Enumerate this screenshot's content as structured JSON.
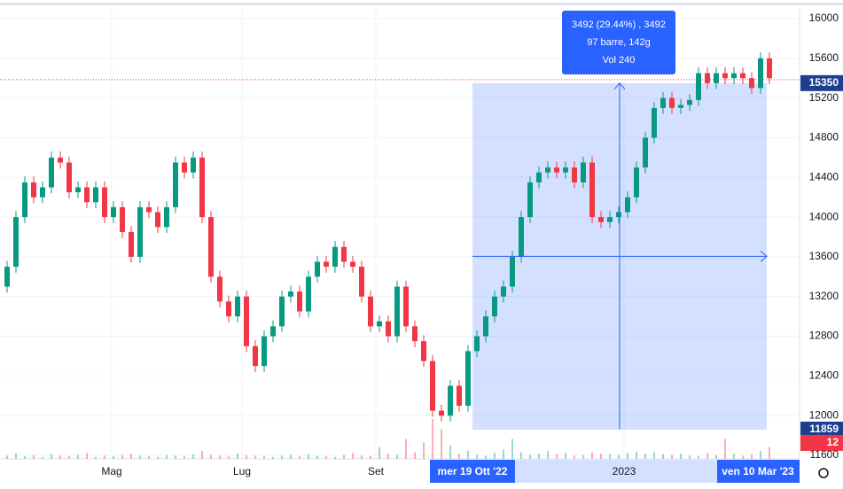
{
  "chart_data": {
    "type": "candlestick",
    "xlabels": [
      "Mag",
      "Lug",
      "Set",
      "2023"
    ],
    "ylim": [
      11600,
      16000
    ],
    "yticks": [
      11600,
      12000,
      12400,
      12800,
      13200,
      13600,
      14000,
      14400,
      14800,
      15200,
      15600,
      16000
    ],
    "grid": true,
    "up_color": "#089981",
    "down_color": "#f23645",
    "open": [
      13300,
      13500,
      14000,
      14350,
      14200,
      14300,
      14600,
      14550,
      14250,
      14300,
      14150,
      14300,
      14000,
      14100,
      13850,
      13600,
      14100,
      14050,
      13900,
      14100,
      14550,
      14450,
      14600,
      14000,
      13400,
      13150,
      13000,
      13200,
      12700,
      12500,
      12800,
      12900,
      13200,
      13250,
      13050,
      13400,
      13550,
      13500,
      13700,
      13550,
      13500,
      13200,
      12900,
      12950,
      12800,
      13300,
      12900,
      12750,
      12550,
      12050,
      12000,
      12300,
      12100,
      12650,
      12800,
      13000,
      13200,
      13300,
      13600,
      14000,
      14350,
      14450,
      14500,
      14450,
      14500,
      14350,
      14550,
      14000,
      13950,
      14000,
      14050,
      14200,
      14500,
      14800,
      15100,
      15200,
      15100,
      15130,
      15180,
      15450,
      15350,
      15450,
      15400,
      15450,
      15400,
      15300,
      15600
    ],
    "high": [
      13560,
      14060,
      14410,
      14410,
      14360,
      14660,
      14660,
      14610,
      14360,
      14360,
      14360,
      14360,
      14160,
      14160,
      13910,
      14160,
      14160,
      14110,
      14160,
      14610,
      14610,
      14660,
      14660,
      14060,
      13460,
      13210,
      13260,
      13260,
      12760,
      12860,
      12960,
      13260,
      13310,
      13310,
      13460,
      13610,
      13610,
      13760,
      13760,
      13610,
      13560,
      13260,
      13010,
      13010,
      13360,
      13360,
      12960,
      12810,
      12610,
      12110,
      12360,
      12360,
      12710,
      12860,
      13060,
      13260,
      13360,
      13660,
      14060,
      14410,
      14510,
      14560,
      14560,
      14560,
      14560,
      14610,
      14610,
      14060,
      14060,
      14110,
      14260,
      14560,
      14860,
      15160,
      15260,
      15260,
      15190,
      15240,
      15510,
      15510,
      15510,
      15510,
      15510,
      15510,
      15460,
      15660,
      15660
    ],
    "low": [
      13240,
      13440,
      13940,
      14140,
      14140,
      14240,
      14490,
      14190,
      14190,
      14090,
      14090,
      13940,
      13940,
      13790,
      13540,
      13540,
      13990,
      13840,
      13840,
      14040,
      14390,
      14390,
      13940,
      13340,
      13090,
      12940,
      12940,
      12640,
      12440,
      12440,
      12740,
      12840,
      13140,
      12990,
      12990,
      13340,
      13440,
      13440,
      13490,
      13440,
      13140,
      12840,
      12840,
      12740,
      12740,
      12840,
      12690,
      12490,
      11990,
      11940,
      11940,
      12040,
      12040,
      12590,
      12740,
      12940,
      13140,
      13240,
      13540,
      13940,
      14290,
      14390,
      14390,
      14390,
      14290,
      14290,
      13940,
      13890,
      13890,
      13940,
      13990,
      14140,
      14440,
      14740,
      15040,
      15040,
      15040,
      15070,
      15120,
      15290,
      15290,
      15340,
      15340,
      15340,
      15240,
      15240,
      15340
    ],
    "close": [
      13500,
      14000,
      14350,
      14200,
      14300,
      14600,
      14550,
      14250,
      14300,
      14150,
      14300,
      14000,
      14100,
      13850,
      13600,
      14100,
      14050,
      13900,
      14100,
      14550,
      14450,
      14600,
      14000,
      13400,
      13150,
      13000,
      13200,
      12700,
      12500,
      12800,
      12900,
      13200,
      13250,
      13050,
      13400,
      13550,
      13500,
      13700,
      13550,
      13500,
      13200,
      12900,
      12950,
      12800,
      13300,
      12900,
      12750,
      12550,
      12050,
      12000,
      12300,
      12100,
      12650,
      12800,
      13000,
      13200,
      13300,
      13600,
      14000,
      14350,
      14450,
      14500,
      14450,
      14500,
      14350,
      14550,
      14000,
      13950,
      14000,
      14050,
      14200,
      14500,
      14800,
      15100,
      15200,
      15100,
      15130,
      15180,
      15450,
      15350,
      15450,
      15400,
      15450,
      15400,
      15300,
      15600,
      15400
    ],
    "volume": [
      5,
      8,
      4,
      6,
      3,
      7,
      5,
      4,
      6,
      9,
      3,
      5,
      4,
      6,
      8,
      5,
      4,
      3,
      6,
      5,
      4,
      7,
      12,
      6,
      5,
      4,
      8,
      6,
      5,
      4,
      3,
      5,
      6,
      4,
      7,
      5,
      4,
      3,
      6,
      9,
      5,
      4,
      18,
      8,
      6,
      30,
      10,
      25,
      60,
      45,
      20,
      8,
      12,
      6,
      5,
      9,
      14,
      30,
      10,
      6,
      8,
      12,
      7,
      9,
      5,
      6,
      10,
      8,
      7,
      6,
      9,
      11,
      8,
      10,
      7,
      6,
      8,
      5,
      4,
      9,
      6,
      30,
      8,
      5,
      7,
      12,
      18
    ],
    "last_price": 15350,
    "last_price_label": "15350",
    "measure_start_price": 11859,
    "measure_start_label": "11859",
    "volume_label": "12",
    "measure_start_date": "mer 19 Ott '22",
    "measure_end_date": "ven 10 Mar '23",
    "tooltip": [
      "3492 (29.44%) , 3492",
      "97 barre, 142g",
      "Vol 240"
    ]
  }
}
